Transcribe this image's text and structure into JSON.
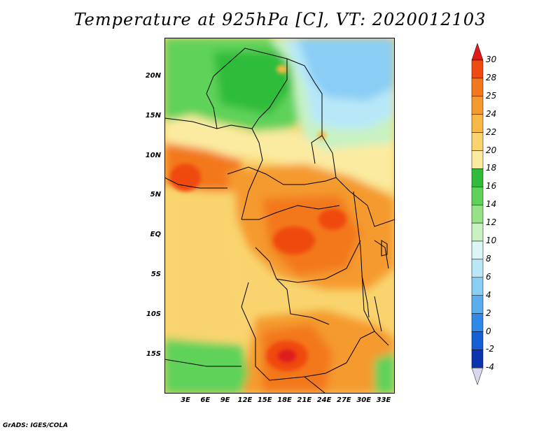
{
  "title": "Temperature at 925hPa [C], VT: 2020012103",
  "credit": "GrADS: IGES/COLA",
  "lat_labels": [
    "20N",
    "15N",
    "10N",
    "5N",
    "EQ",
    "5S",
    "10S",
    "15S"
  ],
  "lon_labels": [
    "3E",
    "6E",
    "9E",
    "12E",
    "15E",
    "18E",
    "21E",
    "24E",
    "27E",
    "30E",
    "33E"
  ],
  "colorbar": {
    "labels": [
      "30",
      "28",
      "25",
      "24",
      "22",
      "20",
      "18",
      "16",
      "14",
      "12",
      "10",
      "8",
      "6",
      "4",
      "2",
      "0",
      "-2",
      "-4"
    ],
    "colors": [
      "#e01a1a",
      "#f04a10",
      "#f3781c",
      "#f59a2f",
      "#f7b945",
      "#f9d46e",
      "#fbeba0",
      "#2ebc3a",
      "#5fd25a",
      "#96e387",
      "#c8f2c2",
      "#dcf6f8",
      "#b8e8f8",
      "#8acdf5",
      "#5aaeee",
      "#3089e6",
      "#1560d4",
      "#0b35b0",
      "#081d7a"
    ]
  }
}
